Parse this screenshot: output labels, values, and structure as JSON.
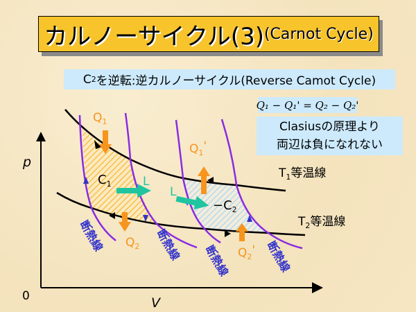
{
  "title": {
    "main": "カルノーサイクル(3)",
    "sub": "(Carnot Cycle)"
  },
  "subtitle": {
    "pre": "C",
    "sub": "2",
    "post": "を逆転:逆カルノーサイクル(Reverse Camot Cycle)"
  },
  "equation": "Q₁ − Q₁' = Q₂ − Q₂'",
  "clausius": {
    "line1": "Clasiusの原理より",
    "line2": "両辺は負になれない"
  },
  "axes": {
    "y": "p",
    "x": "V",
    "origin": "0"
  },
  "labels": {
    "q1": "Q",
    "q1_sub": "1",
    "q2": "Q",
    "q2_sub": "2",
    "q1p": "Q",
    "q1p_sub": "1",
    "q1p_prime": "'",
    "q2p": "Q",
    "q2p_sub": "2",
    "q2p_prime": "'",
    "c1": "C",
    "c1_sub": "1",
    "c2": "−C",
    "c2_sub": "2",
    "l_left": "L",
    "l_right": "L",
    "t1": "T",
    "t1_sub": "1",
    "t1_post": "等温線",
    "t2": "T",
    "t2_sub": "2",
    "t2_post": "等温線",
    "adiabat": "断熱線"
  },
  "colors": {
    "title_bg": "#f7c42c",
    "box_bg": "#cdeafc",
    "isotherm": "#000000",
    "adiabat": "#8a2be2",
    "heat": "#f7941d",
    "work": "#20c5a0",
    "adiabat_label": "#3333cc"
  }
}
